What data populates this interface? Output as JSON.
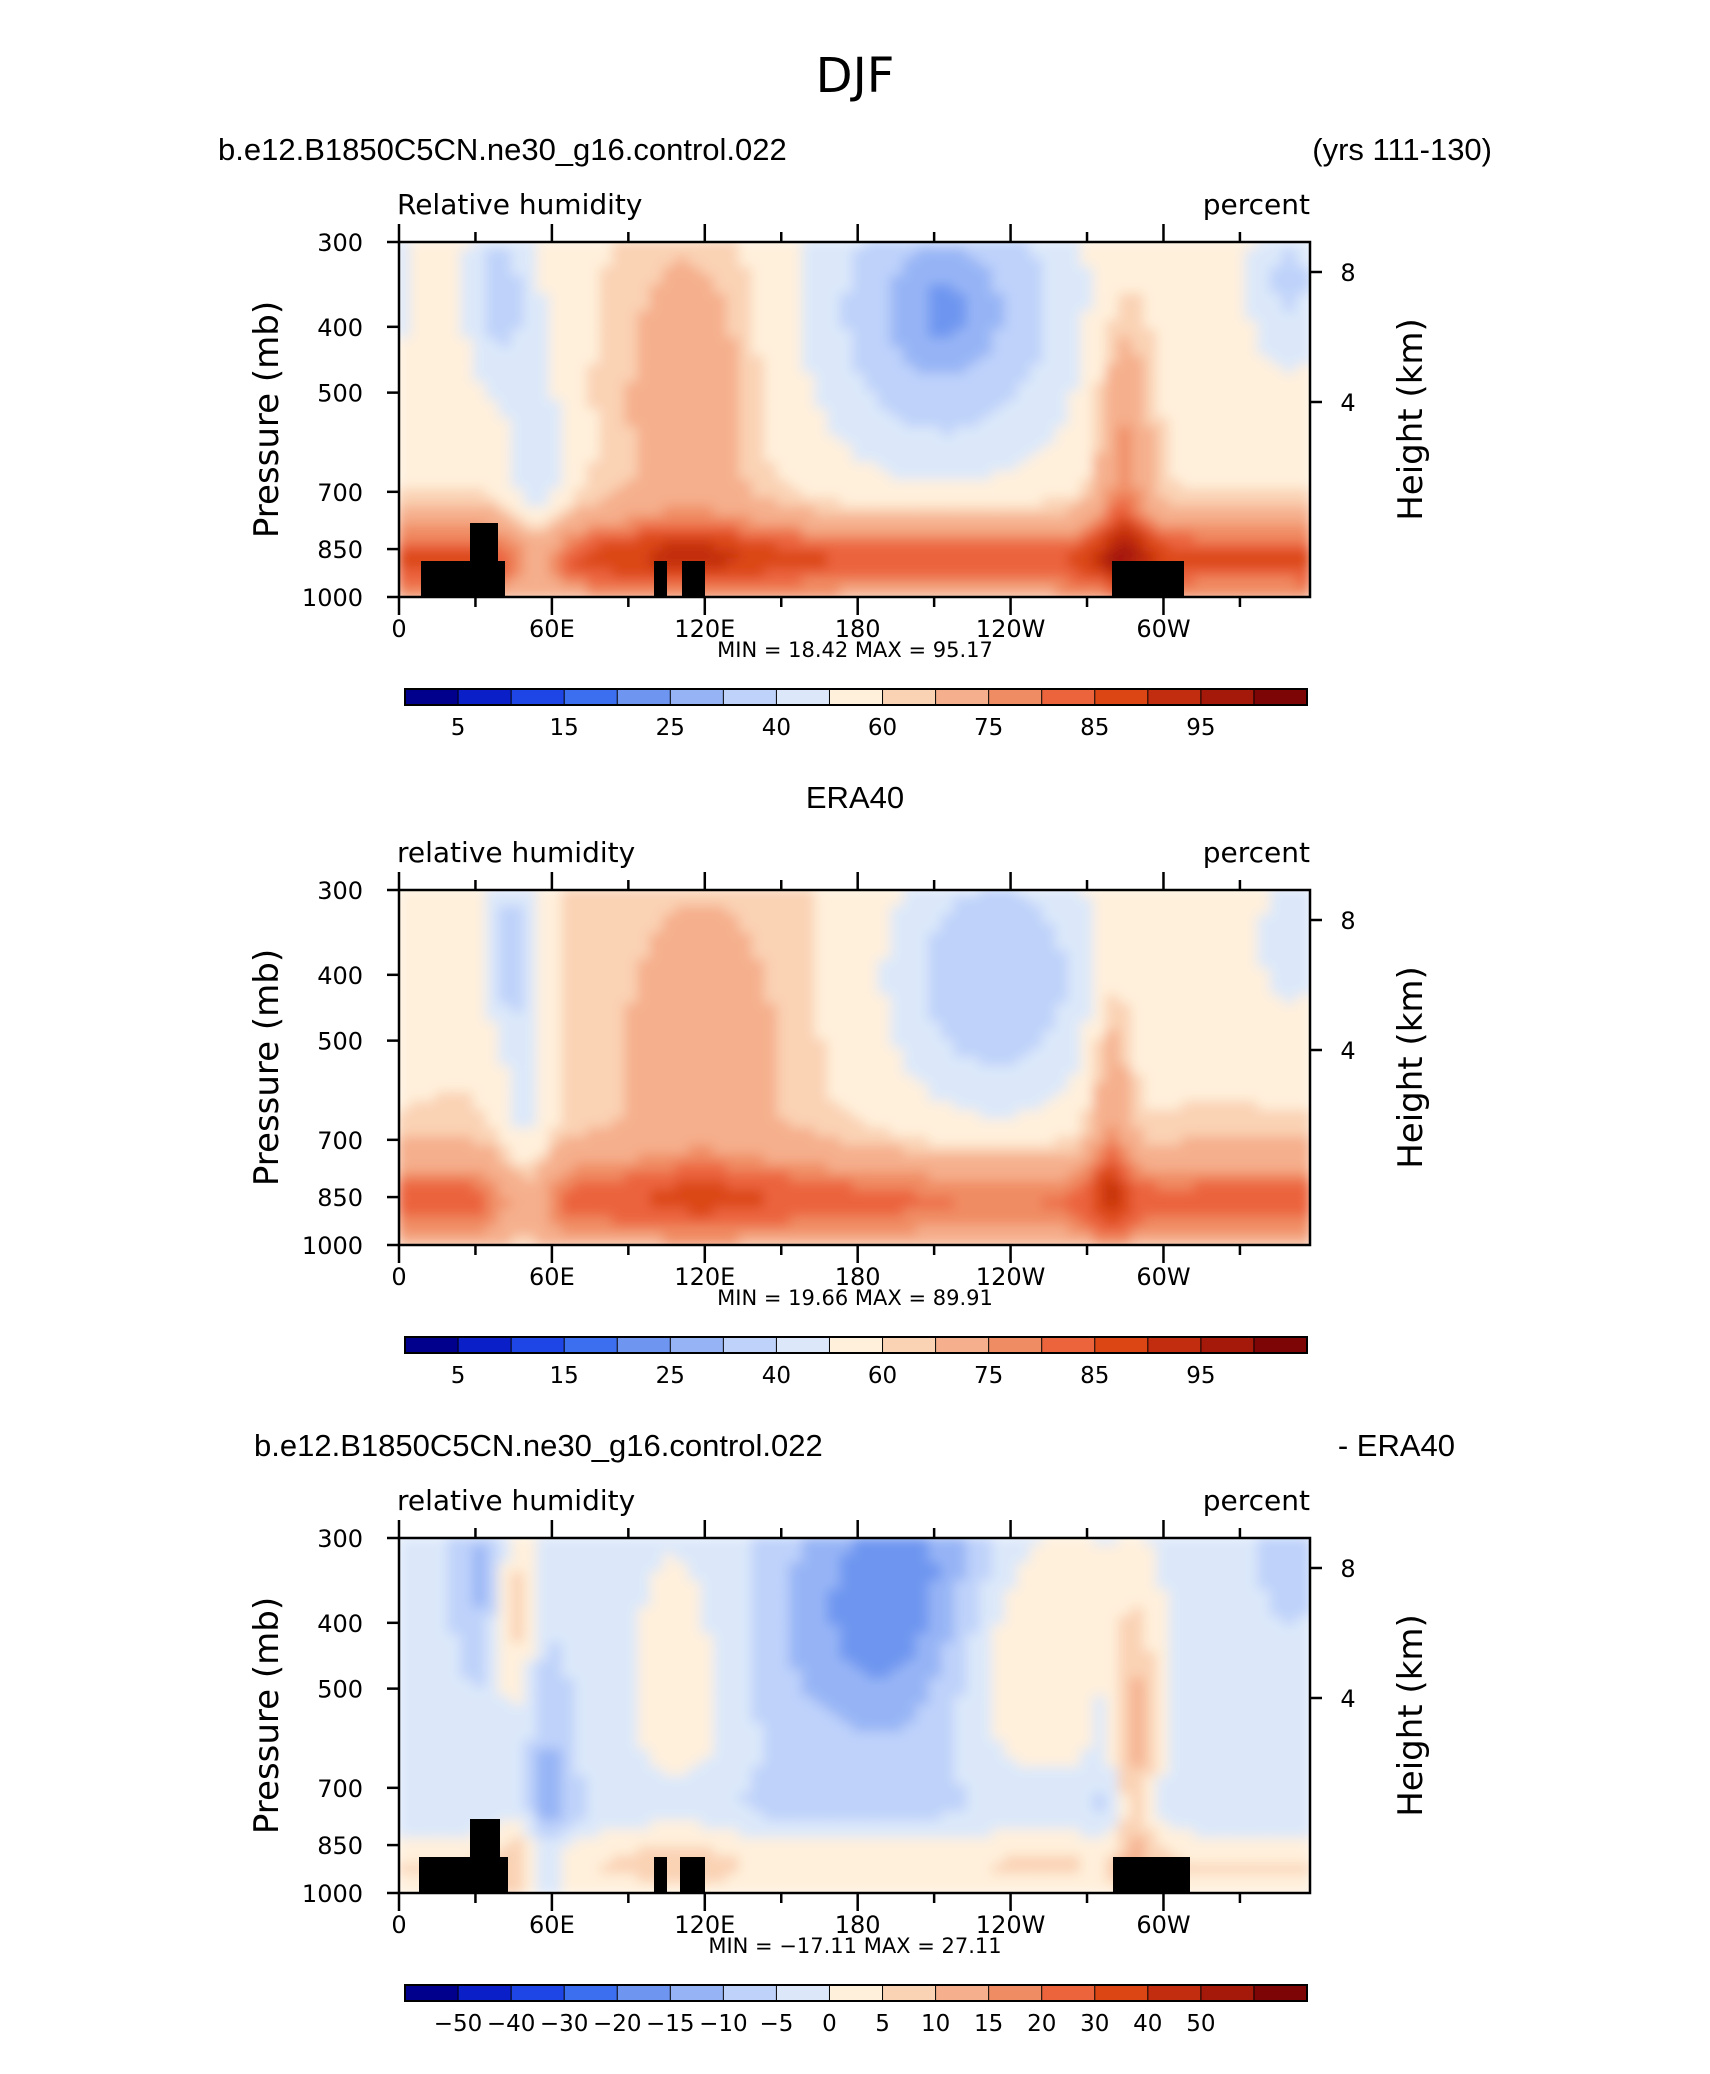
{
  "figure_title": "DJF",
  "colors": {
    "rh_levels": [
      "#00008c",
      "#0a1fc8",
      "#1e46e6",
      "#3c6ef0",
      "#6e96f0",
      "#96b4f5",
      "#bed2fa",
      "#dce8fa",
      "#fff0dc",
      "#fad2b4",
      "#f5af8c",
      "#f08c64",
      "#eb643c",
      "#dc4614",
      "#c32d0f",
      "#a5190a",
      "#7d0505"
    ],
    "diff_levels": [
      "#00008c",
      "#0a1fc8",
      "#1e46e6",
      "#3c6ef0",
      "#6e96f0",
      "#96b4f5",
      "#bed2fa",
      "#dce8fa",
      "#fff0dc",
      "#fad2b4",
      "#f5af8c",
      "#f08c64",
      "#eb643c",
      "#dc4614",
      "#c32d0f",
      "#a5190a",
      "#7d0505"
    ],
    "terrain": "#000000"
  },
  "chart_data": [
    {
      "type": "heatmap",
      "title_left": "b.e12.B1850C5CN.ne30_g16.control.022",
      "title_right": "(yrs 111-130)",
      "variable_label": "Relative humidity",
      "units_label": "percent",
      "ylabel": "Pressure (mb)",
      "ylabel_right": "Height (km)",
      "y_ticks": [
        "300",
        "400",
        "500",
        "700",
        "850",
        "1000"
      ],
      "y_tick_values": [
        300,
        400,
        500,
        700,
        850,
        1000
      ],
      "y_right_ticks": [
        "8",
        "4"
      ],
      "y_right_tick_values": [
        8,
        4
      ],
      "x_ticks": [
        "0",
        "60E",
        "120E",
        "180",
        "120W",
        "60W"
      ],
      "x_tick_values": [
        0,
        60,
        120,
        180,
        240,
        300
      ],
      "xlim": [
        0,
        357.5
      ],
      "ylim": [
        1000,
        300
      ],
      "stats_text": "MIN =   18.42   MAX =   95.17",
      "min": 18.42,
      "max": 95.17,
      "colorbar_labels": [
        "5",
        "15",
        "25",
        "40",
        "60",
        "75",
        "85",
        "95"
      ],
      "colorbar_levels": [
        5,
        10,
        15,
        20,
        25,
        30,
        40,
        50,
        60,
        65,
        75,
        80,
        85,
        90,
        95
      ],
      "has_terrain_mask": true
    },
    {
      "type": "heatmap",
      "title_center": "ERA40",
      "variable_label": "relative humidity",
      "units_label": "percent",
      "ylabel": "Pressure (mb)",
      "ylabel_right": "Height (km)",
      "y_ticks": [
        "300",
        "400",
        "500",
        "700",
        "850",
        "1000"
      ],
      "y_tick_values": [
        300,
        400,
        500,
        700,
        850,
        1000
      ],
      "y_right_ticks": [
        "8",
        "4"
      ],
      "y_right_tick_values": [
        8,
        4
      ],
      "x_ticks": [
        "0",
        "60E",
        "120E",
        "180",
        "120W",
        "60W"
      ],
      "x_tick_values": [
        0,
        60,
        120,
        180,
        240,
        300
      ],
      "xlim": [
        0,
        357.5
      ],
      "ylim": [
        1000,
        300
      ],
      "stats_text": "MIN =   19.66   MAX =   89.91",
      "min": 19.66,
      "max": 89.91,
      "colorbar_labels": [
        "5",
        "15",
        "25",
        "40",
        "60",
        "75",
        "85",
        "95"
      ],
      "colorbar_levels": [
        5,
        10,
        15,
        20,
        25,
        30,
        40,
        50,
        60,
        65,
        75,
        80,
        85,
        90,
        95
      ],
      "has_terrain_mask": false
    },
    {
      "type": "heatmap",
      "title_left": "b.e12.B1850C5CN.ne30_g16.control.022",
      "title_right": "- ERA40",
      "variable_label": "relative humidity",
      "units_label": "percent",
      "ylabel": "Pressure (mb)",
      "ylabel_right": "Height (km)",
      "y_ticks": [
        "300",
        "400",
        "500",
        "700",
        "850",
        "1000"
      ],
      "y_tick_values": [
        300,
        400,
        500,
        700,
        850,
        1000
      ],
      "y_right_ticks": [
        "8",
        "4"
      ],
      "y_right_tick_values": [
        8,
        4
      ],
      "x_ticks": [
        "0",
        "60E",
        "120E",
        "180",
        "120W",
        "60W"
      ],
      "x_tick_values": [
        0,
        60,
        120,
        180,
        240,
        300
      ],
      "xlim": [
        0,
        357.5
      ],
      "ylim": [
        1000,
        300
      ],
      "stats_text": "MIN = −17.11   MAX =   27.11",
      "min": -17.11,
      "max": 27.11,
      "colorbar_labels": [
        "−50",
        "−40",
        "−30",
        "−20",
        "−15",
        "−10",
        "−5",
        "0",
        "5",
        "10",
        "15",
        "20",
        "30",
        "40",
        "50"
      ],
      "colorbar_levels": [
        -50,
        -40,
        -30,
        -20,
        -15,
        -10,
        -5,
        0,
        5,
        10,
        15,
        20,
        30,
        40,
        50
      ],
      "has_terrain_mask": true
    }
  ]
}
